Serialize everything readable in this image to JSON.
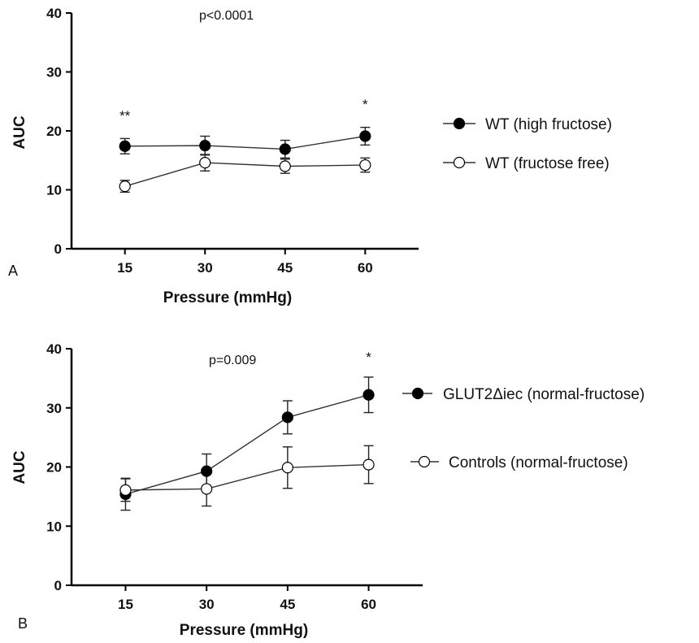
{
  "chart_data": [
    {
      "type": "line",
      "panel_label": "A",
      "annotation": "p<0.0001",
      "xlabel": "Pressure (mmHg)",
      "ylabel": "AUC",
      "x": [
        15,
        30,
        45,
        60
      ],
      "x_tick_labels": [
        "15",
        "30",
        "45",
        "60"
      ],
      "xlim": [
        5,
        70
      ],
      "ylim": [
        0,
        40
      ],
      "y_ticks": [
        0,
        10,
        20,
        30,
        40
      ],
      "grid": false,
      "legend_position": "right",
      "series": [
        {
          "name": "WT (high fructose)",
          "marker": "filled-circle",
          "values": [
            17.4,
            17.5,
            16.9,
            19.1
          ],
          "error": [
            1.3,
            1.6,
            1.5,
            1.5
          ]
        },
        {
          "name": "WT (fructose free)",
          "marker": "open-circle",
          "values": [
            10.6,
            14.6,
            14.0,
            14.2
          ],
          "error": [
            1.0,
            1.4,
            1.2,
            1.2
          ]
        }
      ],
      "significance_marks": [
        {
          "x": 15,
          "label": "**"
        },
        {
          "x": 60,
          "label": "*"
        }
      ]
    },
    {
      "type": "line",
      "panel_label": "B",
      "annotation": "p=0.009",
      "xlabel": "Pressure (mmHg)",
      "ylabel": "AUC",
      "x": [
        15,
        30,
        45,
        60
      ],
      "x_tick_labels": [
        "15",
        "30",
        "45",
        "60"
      ],
      "xlim": [
        5,
        70
      ],
      "ylim": [
        0,
        40
      ],
      "y_ticks": [
        0,
        10,
        20,
        30,
        40
      ],
      "grid": false,
      "legend_position": "right",
      "series": [
        {
          "name": "GLUT2Δiec (normal-fructose)",
          "marker": "filled-circle",
          "values": [
            15.4,
            19.3,
            28.4,
            32.2
          ],
          "error": [
            2.7,
            2.9,
            2.8,
            3.0
          ]
        },
        {
          "name": "Controls (normal-fructose)",
          "marker": "open-circle",
          "values": [
            16.1,
            16.3,
            19.9,
            20.4
          ],
          "error": [
            1.9,
            2.9,
            3.5,
            3.2
          ]
        }
      ],
      "significance_marks": [
        {
          "x": 60,
          "label": "*"
        }
      ]
    }
  ]
}
